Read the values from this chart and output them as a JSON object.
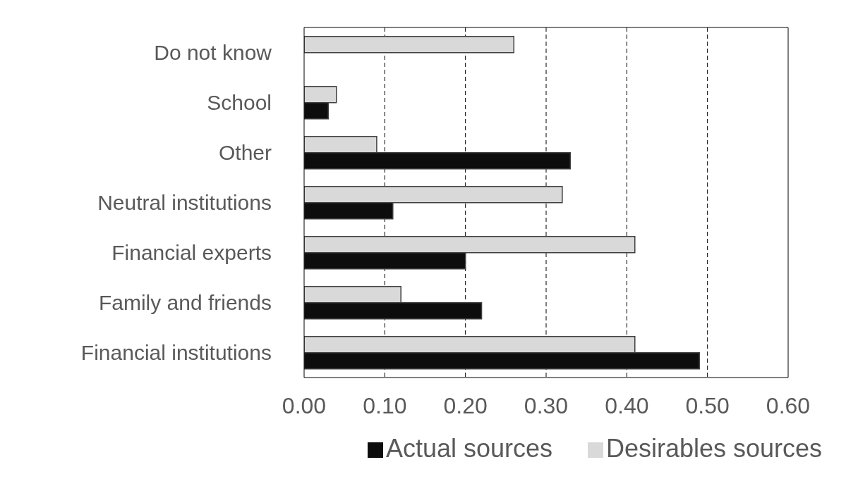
{
  "chart_data": {
    "type": "bar",
    "orientation": "horizontal",
    "categories": [
      "Do not know",
      "School",
      "Other",
      "Neutral institutions",
      "Financial experts",
      "Family and friends",
      "Financial institutions"
    ],
    "series": [
      {
        "name": "Desirables sources",
        "color": "#d9d9d9",
        "values": [
          0.26,
          0.04,
          0.09,
          0.32,
          0.41,
          0.12,
          0.41
        ]
      },
      {
        "name": "Actual sources",
        "color": "#0d0d0d",
        "values": [
          null,
          0.03,
          0.33,
          0.11,
          0.2,
          0.22,
          0.49
        ]
      }
    ],
    "xlim": [
      0,
      0.6
    ],
    "xticks": [
      {
        "value": 0,
        "label": "0.00"
      },
      {
        "value": 0.1,
        "label": "0.10"
      },
      {
        "value": 0.2,
        "label": "0.20"
      },
      {
        "value": 0.3,
        "label": "0.30"
      },
      {
        "value": 0.4,
        "label": "0.40"
      },
      {
        "value": 0.5,
        "label": "0.50"
      },
      {
        "value": 0.6,
        "label": "0.60"
      }
    ],
    "grid": "x",
    "legend": "bottom"
  }
}
